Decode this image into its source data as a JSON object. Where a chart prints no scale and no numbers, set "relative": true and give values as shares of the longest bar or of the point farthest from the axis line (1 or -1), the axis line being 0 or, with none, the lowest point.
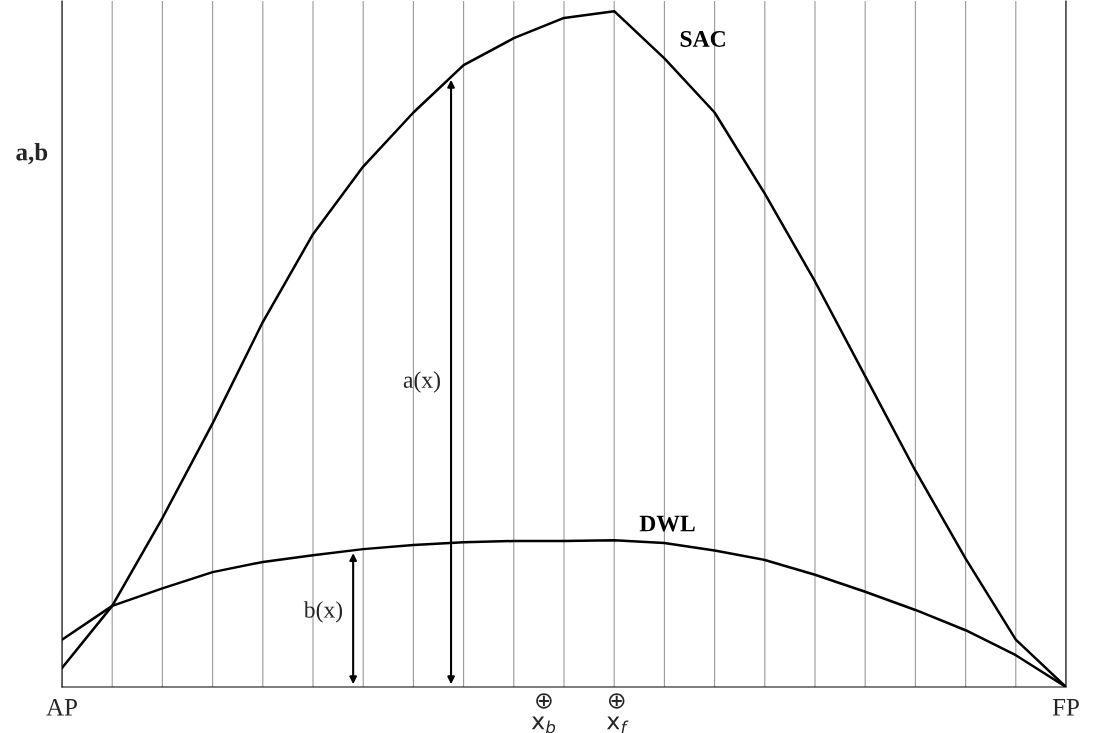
{
  "chart_data": {
    "type": "line",
    "relative": true,
    "ylabel": "a,b",
    "categories": [
      "AP",
      null,
      null,
      null,
      null,
      null,
      null,
      null,
      null,
      null,
      null,
      null,
      null,
      null,
      null,
      null,
      null,
      null,
      null,
      null,
      "FP"
    ],
    "series": [
      {
        "name": "SAC",
        "color": "#000000",
        "values": [
          0.028,
          0.12,
          0.25,
          0.39,
          0.54,
          0.67,
          0.77,
          0.85,
          0.92,
          0.96,
          0.99,
          1,
          0.93,
          0.85,
          0.73,
          0.6,
          0.46,
          0.32,
          0.19,
          0.07,
          0
        ]
      },
      {
        "name": "DWL",
        "color": "#000000",
        "values": [
          0.07,
          0.12,
          0.146,
          0.17,
          0.185,
          0.195,
          0.204,
          0.21,
          0.214,
          0.216,
          0.216,
          0.217,
          0.213,
          0.202,
          0.188,
          0.166,
          0.141,
          0.114,
          0.084,
          0.047,
          0
        ]
      }
    ],
    "annotations": [
      "a(x)",
      "b(x)",
      "⊕\nx$_{b}$",
      "⊕\nx$_{f}$"
    ],
    "grid": "x",
    "marker": "none",
    "line_style": "solid",
    "legend": false
  }
}
